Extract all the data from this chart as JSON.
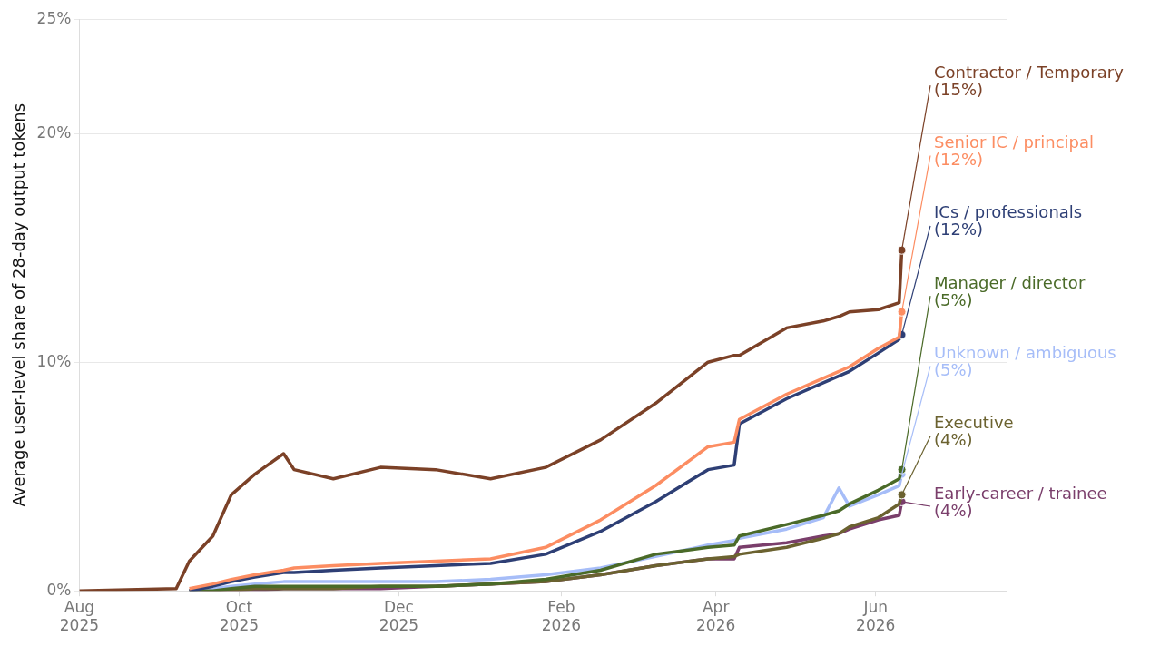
{
  "chart_data": {
    "type": "line",
    "ylabel": "Average user-level share of 28-day output tokens",
    "x": [
      "2025-08-01",
      "2025-09-07",
      "2025-09-12",
      "2025-09-21",
      "2025-09-28",
      "2025-10-07",
      "2025-10-18",
      "2025-10-22",
      "2025-11-06",
      "2025-11-24",
      "2025-12-15",
      "2026-01-05",
      "2026-01-26",
      "2026-02-16",
      "2026-03-09",
      "2026-03-29",
      "2026-04-08",
      "2026-04-10",
      "2026-04-28",
      "2026-05-12",
      "2026-05-18",
      "2026-05-22",
      "2026-06-02",
      "2026-06-10",
      "2026-06-11"
    ],
    "xlim": [
      "2025-08-01",
      "2026-07-21"
    ],
    "xticks": [
      {
        "value": "2025-08-01",
        "label": "Aug\n2025"
      },
      {
        "value": "2025-10-01",
        "label": "Oct\n2025"
      },
      {
        "value": "2025-12-01",
        "label": "Dec\n2025"
      },
      {
        "value": "2026-02-01",
        "label": "Feb\n2026"
      },
      {
        "value": "2026-04-01",
        "label": "Apr\n2026"
      },
      {
        "value": "2026-06-01",
        "label": "Jun\n2026"
      }
    ],
    "ylim": [
      0,
      25
    ],
    "yticks": [
      {
        "value": 0,
        "label": "0%"
      },
      {
        "value": 10,
        "label": "10%"
      },
      {
        "value": 20,
        "label": "20%"
      },
      {
        "value": 25,
        "label": "25%"
      }
    ],
    "grid": "y",
    "legend": "right",
    "line_style": "solid",
    "series": [
      {
        "name": "Contractor / Temporary",
        "color": "#7b4127",
        "values": [
          0,
          0.1,
          1.3,
          2.4,
          4.2,
          5.1,
          6.0,
          5.3,
          4.9,
          5.4,
          5.3,
          4.9,
          5.4,
          6.6,
          8.2,
          10.0,
          10.3,
          10.3,
          11.5,
          11.8,
          12.0,
          12.2,
          12.3,
          12.6,
          14.9
        ]
      },
      {
        "name": "Senior IC / principal",
        "color": "#fc8d62",
        "values": [
          null,
          null,
          0.1,
          0.3,
          0.5,
          0.7,
          0.9,
          1.0,
          1.1,
          1.2,
          1.3,
          1.4,
          1.9,
          3.1,
          4.6,
          6.3,
          6.5,
          7.5,
          8.6,
          9.3,
          9.6,
          9.8,
          10.6,
          11.1,
          12.2
        ]
      },
      {
        "name": "ICs / professionals",
        "color": "#2e3f75",
        "values": [
          null,
          null,
          0,
          0.2,
          0.4,
          0.6,
          0.8,
          0.8,
          0.9,
          1.0,
          1.1,
          1.2,
          1.6,
          2.6,
          3.9,
          5.3,
          5.5,
          7.3,
          8.4,
          9.1,
          9.4,
          9.6,
          10.4,
          11.0,
          11.2
        ]
      },
      {
        "name": "Manager / director",
        "color": "#4a6a28",
        "values": [
          null,
          null,
          0,
          0,
          0.1,
          0.2,
          0.2,
          0.2,
          0.2,
          0.2,
          0.2,
          0.3,
          0.5,
          0.9,
          1.6,
          1.9,
          2.0,
          2.4,
          2.9,
          3.3,
          3.5,
          3.8,
          4.4,
          4.9,
          5.3
        ]
      },
      {
        "name": "Unknown / ambiguous",
        "color": "#a6bdf8",
        "values": [
          null,
          null,
          0,
          0.1,
          0.2,
          0.3,
          0.4,
          0.4,
          0.4,
          0.4,
          0.4,
          0.5,
          0.7,
          1.0,
          1.5,
          2.0,
          2.2,
          2.3,
          2.7,
          3.2,
          4.5,
          3.7,
          4.2,
          4.6,
          5.1
        ]
      },
      {
        "name": "Executive",
        "color": "#6b6230",
        "values": [
          null,
          null,
          0,
          0,
          0,
          0.1,
          0.1,
          0.1,
          0.1,
          0.2,
          0.2,
          0.3,
          0.4,
          0.7,
          1.1,
          1.4,
          1.5,
          1.6,
          1.9,
          2.3,
          2.5,
          2.8,
          3.2,
          3.8,
          4.2
        ]
      },
      {
        "name": "Early-career / trainee",
        "color": "#7a3e6b",
        "values": [
          null,
          null,
          0,
          0,
          0,
          0,
          0.1,
          0.1,
          0.1,
          0.1,
          0.2,
          0.3,
          0.4,
          0.7,
          1.1,
          1.4,
          1.4,
          1.9,
          2.1,
          2.4,
          2.5,
          2.7,
          3.1,
          3.3,
          3.9
        ]
      }
    ],
    "annotations": [
      {
        "text": "(15%)",
        "x": "2026-06-11",
        "y": 14.9
      },
      {
        "text": "(12%)",
        "x": "2026-06-11",
        "y": 12.2
      },
      {
        "text": "(12%)",
        "x": "2026-06-11",
        "y": 11.2
      },
      {
        "text": "(5%)",
        "x": "2026-06-11",
        "y": 5.3
      },
      {
        "text": "(5%)",
        "x": "2026-06-11",
        "y": 5.1
      },
      {
        "text": "(4%)",
        "x": "2026-06-11",
        "y": 4.2
      },
      {
        "text": "(4%)",
        "x": "2026-06-11",
        "y": 3.9
      }
    ]
  }
}
